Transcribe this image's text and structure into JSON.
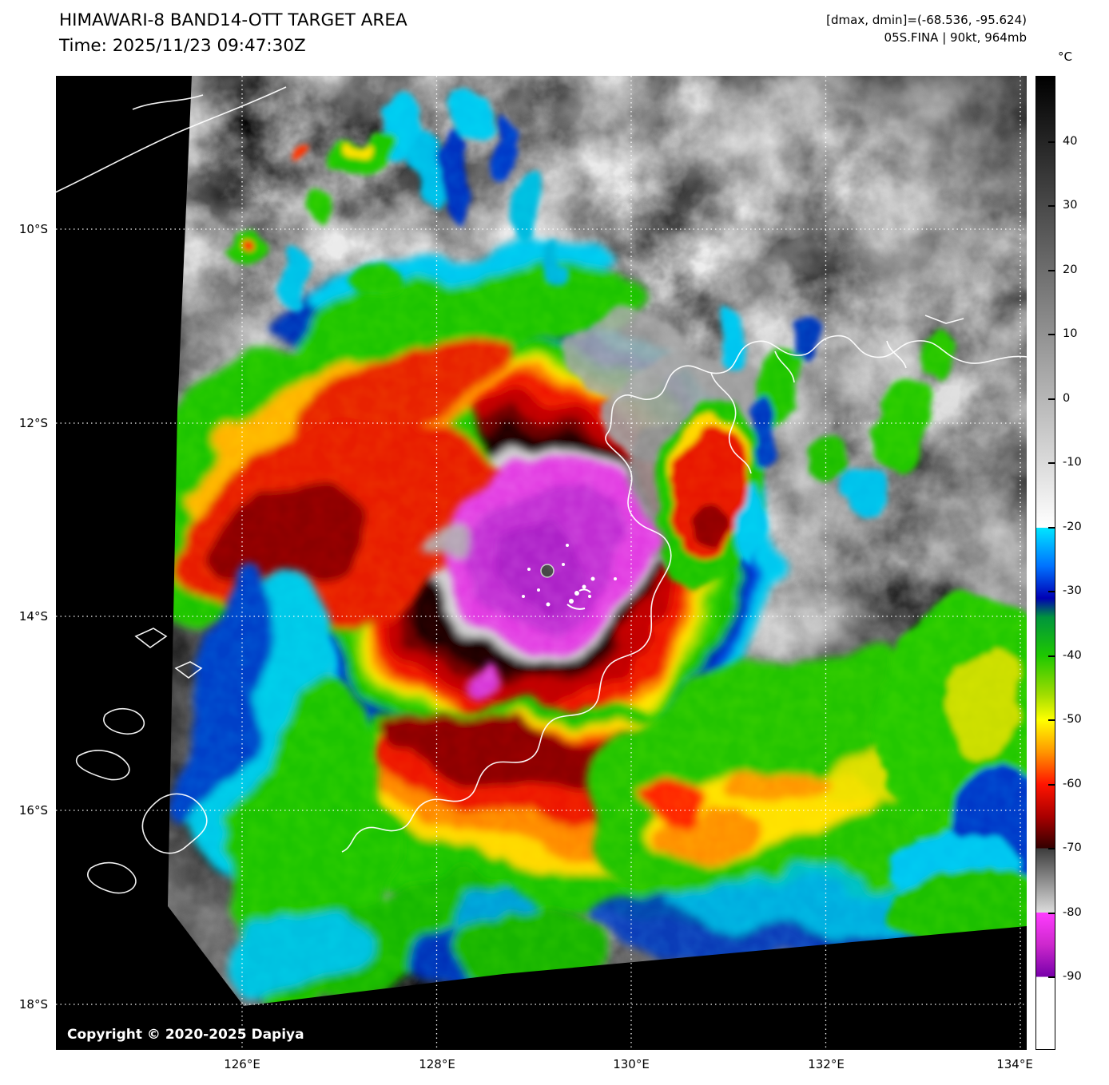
{
  "header": {
    "title": "HIMAWARI-8 BAND14-OTT TARGET AREA",
    "time_line": "Time: 2025/11/23 09:47:30Z",
    "dmax_dmin": "[dmax, dmin]=(-68.536, -95.624)",
    "storm_info": "05S.FINA | 90kt, 964mb"
  },
  "colorbar": {
    "unit_label": "°C",
    "tick_labels": [
      "40",
      "30",
      "20",
      "10",
      "0",
      "-10",
      "-20",
      "-30",
      "-40",
      "-50",
      "-60",
      "-70",
      "-80",
      "-90"
    ],
    "gradient_stops": [
      {
        "t": 50.3,
        "c": "#000000"
      },
      {
        "t": -20,
        "c": "#ffffff"
      },
      {
        "t": -20,
        "c": "#00e6ff"
      },
      {
        "t": -26,
        "c": "#0072ff"
      },
      {
        "t": -31,
        "c": "#0000b4"
      },
      {
        "t": -34,
        "c": "#00953c"
      },
      {
        "t": -40,
        "c": "#1ec800"
      },
      {
        "t": -46,
        "c": "#a0dc00"
      },
      {
        "t": -50,
        "c": "#ffff00"
      },
      {
        "t": -55,
        "c": "#ff9600"
      },
      {
        "t": -60,
        "c": "#ff1400"
      },
      {
        "t": -65,
        "c": "#aa0000"
      },
      {
        "t": -70,
        "c": "#320000"
      },
      {
        "t": -70,
        "c": "#3c3c3c"
      },
      {
        "t": -80,
        "c": "#dcdcdc"
      },
      {
        "t": -80,
        "c": "#ff3cff"
      },
      {
        "t": -85,
        "c": "#cd28cd"
      },
      {
        "t": -90,
        "c": "#7800aa"
      },
      {
        "t": -90,
        "c": "#ffffff"
      },
      {
        "t": -101.3,
        "c": "#ffffff"
      }
    ]
  },
  "axes": {
    "lat_tick_labels": [
      "10°S",
      "12°S",
      "14°S",
      "16°S",
      "18°S"
    ],
    "lon_tick_labels": [
      "126°E",
      "128°E",
      "130°E",
      "132°E",
      "134°E"
    ]
  },
  "map": {
    "copyright": "Copyright © 2020-2025 Dapiya"
  }
}
